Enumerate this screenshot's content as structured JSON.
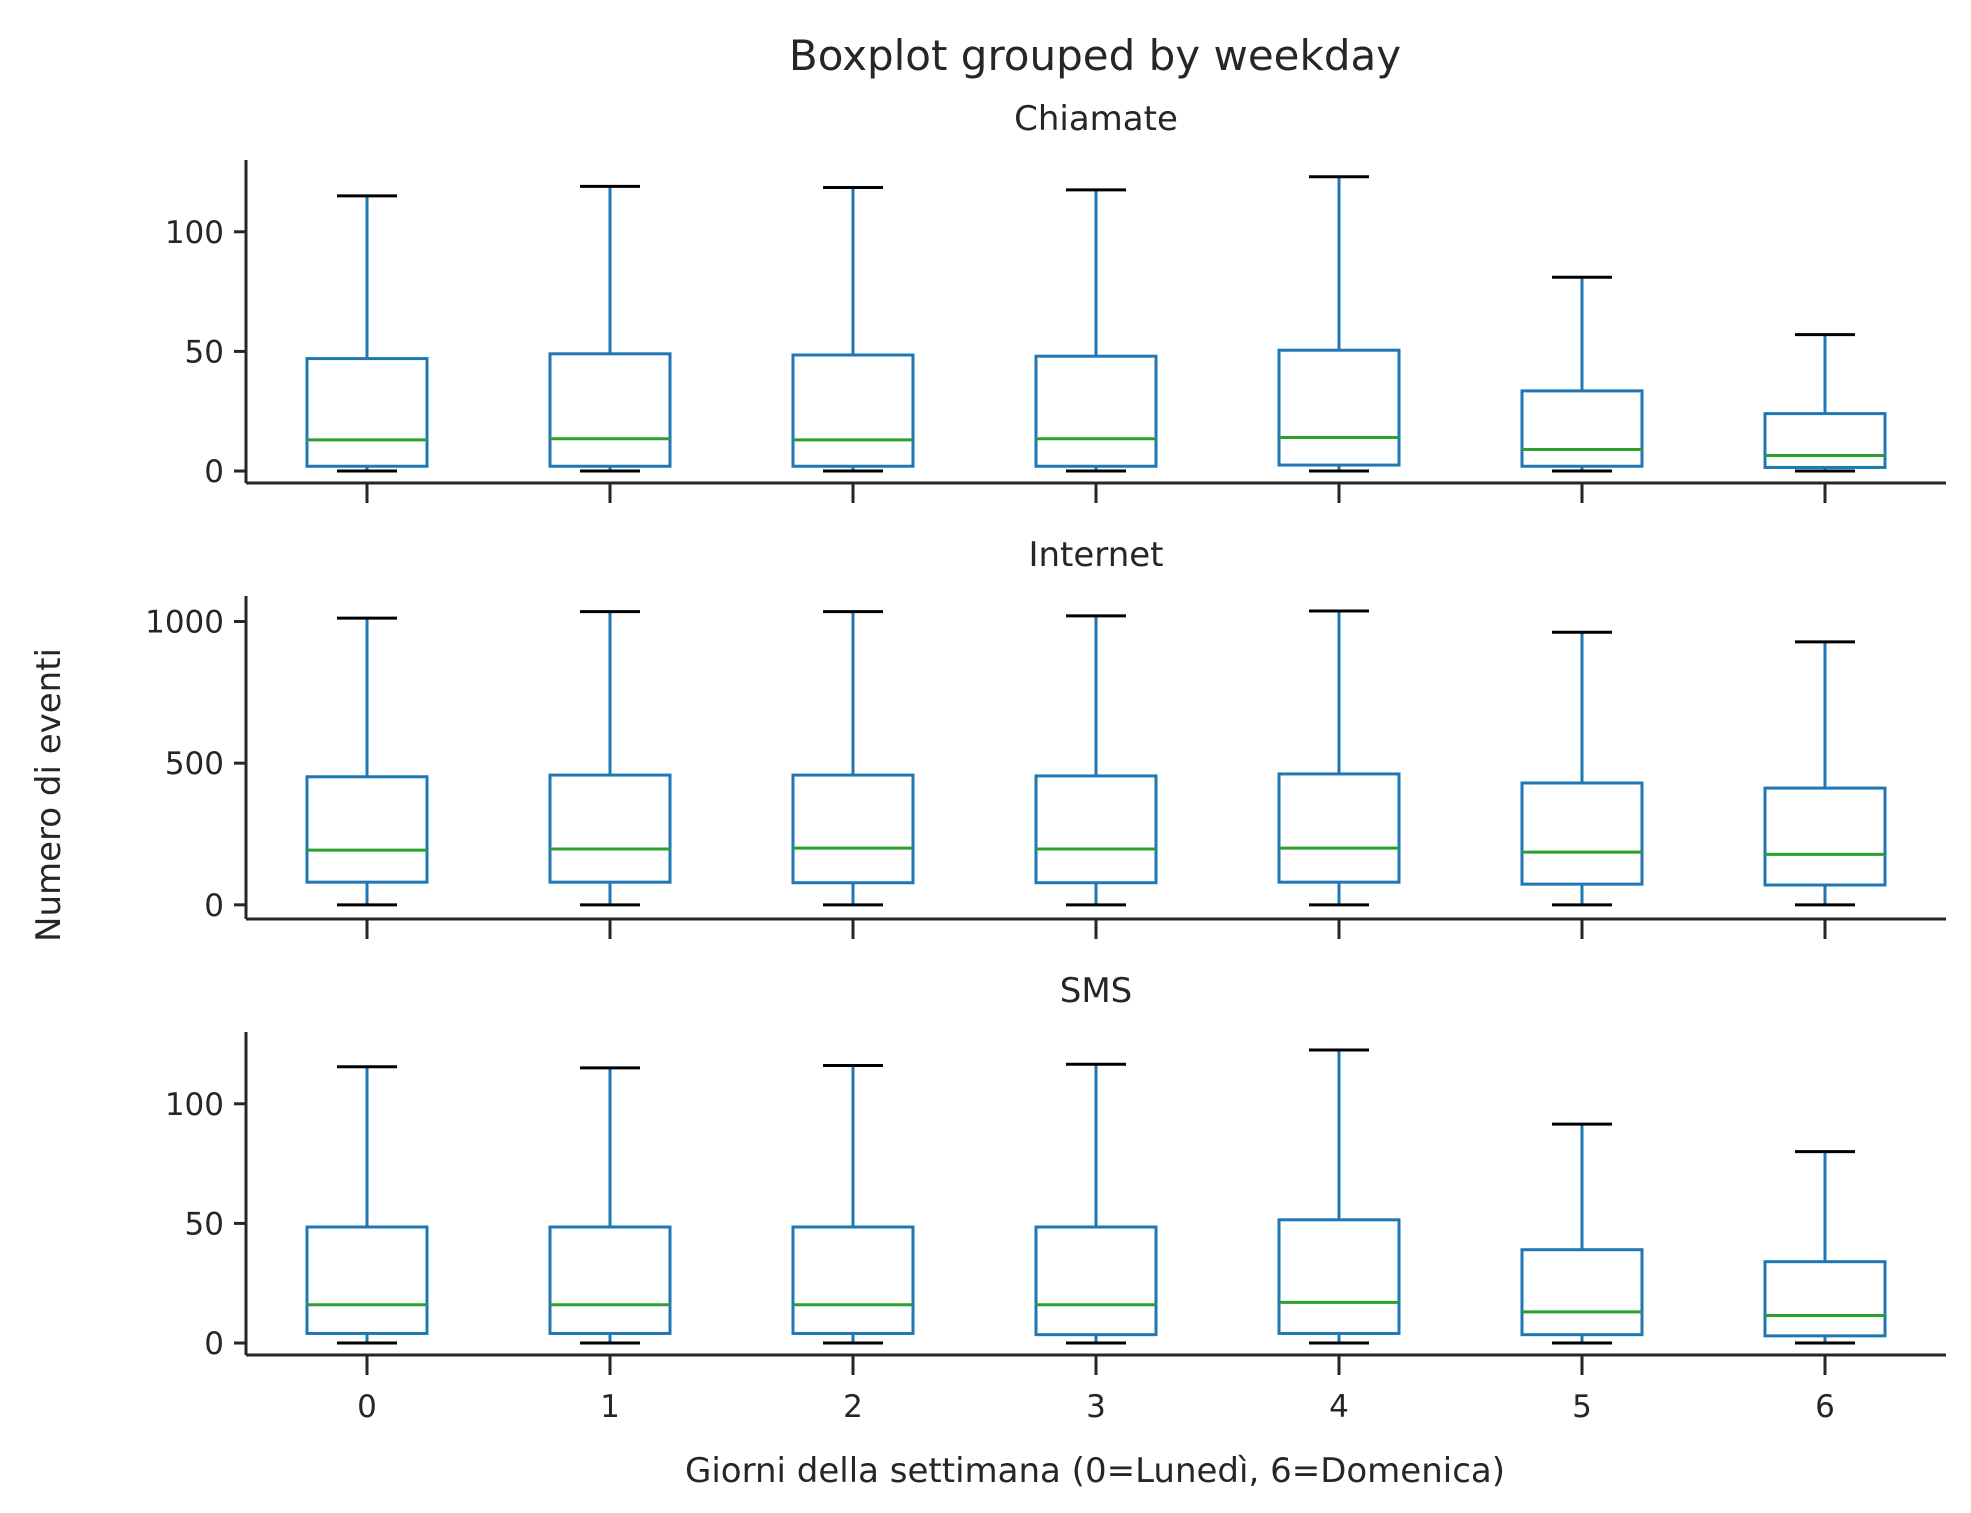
{
  "chart_data": {
    "type": "boxplot",
    "title": "Boxplot grouped by weekday",
    "xlabel": "Giorni della settimana (0=Lunedì, 6=Domenica)",
    "ylabel": "Numero di eventi",
    "categories": [
      "0",
      "1",
      "2",
      "3",
      "4",
      "5",
      "6"
    ],
    "colors": {
      "box": "#1f77b4",
      "median": "#2ca02c",
      "whisker": "#1f77b4",
      "cap": "#000000",
      "axis": "#262626"
    },
    "grid": false,
    "panels": [
      {
        "title": "Chiamate",
        "ylim": [
          -5,
          130
        ],
        "yticks": [
          0,
          50,
          100
        ],
        "boxes": [
          {
            "min": 0,
            "q1": 2,
            "median": 13,
            "q3": 47,
            "max": 115
          },
          {
            "min": 0,
            "q1": 2,
            "median": 13.5,
            "q3": 49,
            "max": 119
          },
          {
            "min": 0,
            "q1": 2,
            "median": 13,
            "q3": 48.5,
            "max": 118.5
          },
          {
            "min": 0,
            "q1": 2,
            "median": 13.5,
            "q3": 48,
            "max": 117.5
          },
          {
            "min": 0,
            "q1": 2.5,
            "median": 14,
            "q3": 50.5,
            "max": 123
          },
          {
            "min": 0,
            "q1": 2,
            "median": 9,
            "q3": 33.5,
            "max": 81
          },
          {
            "min": 0,
            "q1": 1.5,
            "median": 6.5,
            "q3": 24,
            "max": 57
          }
        ]
      },
      {
        "title": "Internet",
        "ylim": [
          -50,
          1090
        ],
        "yticks": [
          0,
          500,
          1000
        ],
        "boxes": [
          {
            "min": 0,
            "q1": 80,
            "median": 193,
            "q3": 452,
            "max": 1012
          },
          {
            "min": 0,
            "q1": 80,
            "median": 197,
            "q3": 458,
            "max": 1035
          },
          {
            "min": 0,
            "q1": 78,
            "median": 200,
            "q3": 458,
            "max": 1035
          },
          {
            "min": 0,
            "q1": 78,
            "median": 197,
            "q3": 455,
            "max": 1020
          },
          {
            "min": 0,
            "q1": 80,
            "median": 200,
            "q3": 462,
            "max": 1037
          },
          {
            "min": 0,
            "q1": 73,
            "median": 186,
            "q3": 430,
            "max": 962
          },
          {
            "min": 0,
            "q1": 70,
            "median": 178,
            "q3": 412,
            "max": 928
          }
        ]
      },
      {
        "title": "SMS",
        "ylim": [
          -5,
          130
        ],
        "yticks": [
          0,
          50,
          100
        ],
        "boxes": [
          {
            "min": 0,
            "q1": 4,
            "median": 16,
            "q3": 48.5,
            "max": 115.5
          },
          {
            "min": 0,
            "q1": 4,
            "median": 16,
            "q3": 48.5,
            "max": 115
          },
          {
            "min": 0,
            "q1": 4,
            "median": 16,
            "q3": 48.5,
            "max": 116
          },
          {
            "min": 0,
            "q1": 3.5,
            "median": 16,
            "q3": 48.5,
            "max": 116.5
          },
          {
            "min": 0,
            "q1": 4,
            "median": 17,
            "q3": 51.5,
            "max": 122.5
          },
          {
            "min": 0,
            "q1": 3.5,
            "median": 13,
            "q3": 39,
            "max": 91.5
          },
          {
            "min": 0,
            "q1": 3,
            "median": 11.5,
            "q3": 34,
            "max": 80
          }
        ]
      }
    ]
  }
}
